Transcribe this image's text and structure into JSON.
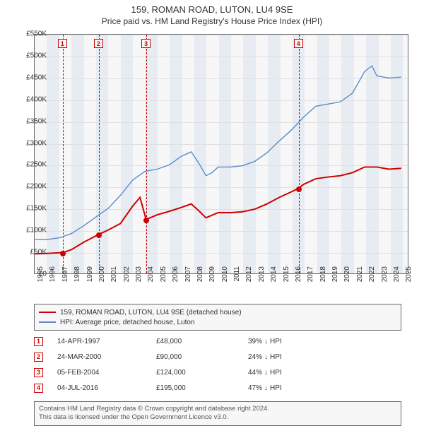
{
  "title": {
    "line1": "159, ROMAN ROAD, LUTON, LU4 9SE",
    "line2": "Price paid vs. HM Land Registry's House Price Index (HPI)",
    "fontsize_line1": 13,
    "fontsize_line2": 12,
    "color": "#333333"
  },
  "chart": {
    "type": "line",
    "background_color": "#f7f7f7",
    "border_color": "#666666",
    "grid_color": "#e0e0e0",
    "xlim": [
      1995,
      2025.5
    ],
    "ylim": [
      0,
      550000
    ],
    "ytick_step": 50000,
    "yticks": [
      "£0",
      "£50K",
      "£100K",
      "£150K",
      "£200K",
      "£250K",
      "£300K",
      "£350K",
      "£400K",
      "£450K",
      "£500K",
      "£550K"
    ],
    "xticks": [
      1995,
      1996,
      1997,
      1998,
      1999,
      2000,
      2001,
      2002,
      2003,
      2004,
      2005,
      2006,
      2007,
      2008,
      2009,
      2010,
      2011,
      2012,
      2013,
      2014,
      2015,
      2016,
      2017,
      2018,
      2019,
      2020,
      2021,
      2022,
      2023,
      2024,
      2025
    ],
    "band_color": "rgba(200,215,235,0.35)",
    "band_years": [
      1996,
      1998,
      2000,
      2002,
      2004,
      2006,
      2008,
      2010,
      2012,
      2014,
      2016,
      2018,
      2020,
      2022,
      2024
    ],
    "series": [
      {
        "name": "property",
        "label": "159, ROMAN ROAD, LUTON, LU4 9SE (detached house)",
        "color": "#cc0000",
        "line_width": 2,
        "points": [
          [
            1995.0,
            45000
          ],
          [
            1996.0,
            46000
          ],
          [
            1997.29,
            48000
          ],
          [
            1998.0,
            55000
          ],
          [
            1999.0,
            72000
          ],
          [
            2000.23,
            90000
          ],
          [
            2001.0,
            100000
          ],
          [
            2002.0,
            115000
          ],
          [
            2003.0,
            155000
          ],
          [
            2003.6,
            175000
          ],
          [
            2004.1,
            124000
          ],
          [
            2005.0,
            135000
          ],
          [
            2006.0,
            143000
          ],
          [
            2007.0,
            152000
          ],
          [
            2007.8,
            160000
          ],
          [
            2008.5,
            142000
          ],
          [
            2009.0,
            128000
          ],
          [
            2010.0,
            140000
          ],
          [
            2011.0,
            140000
          ],
          [
            2012.0,
            142000
          ],
          [
            2013.0,
            148000
          ],
          [
            2014.0,
            160000
          ],
          [
            2015.0,
            175000
          ],
          [
            2016.0,
            188000
          ],
          [
            2016.51,
            195000
          ],
          [
            2017.0,
            205000
          ],
          [
            2018.0,
            218000
          ],
          [
            2019.0,
            222000
          ],
          [
            2020.0,
            225000
          ],
          [
            2021.0,
            232000
          ],
          [
            2022.0,
            245000
          ],
          [
            2023.0,
            245000
          ],
          [
            2024.0,
            240000
          ],
          [
            2025.0,
            242000
          ]
        ]
      },
      {
        "name": "hpi",
        "label": "HPI: Average price, detached house, Luton",
        "color": "#5b8bc9",
        "line_width": 1.4,
        "points": [
          [
            1995.0,
            78000
          ],
          [
            1996.0,
            78000
          ],
          [
            1997.0,
            82000
          ],
          [
            1998.0,
            92000
          ],
          [
            1999.0,
            110000
          ],
          [
            2000.0,
            130000
          ],
          [
            2001.0,
            150000
          ],
          [
            2002.0,
            180000
          ],
          [
            2003.0,
            215000
          ],
          [
            2004.0,
            235000
          ],
          [
            2005.0,
            240000
          ],
          [
            2006.0,
            250000
          ],
          [
            2007.0,
            270000
          ],
          [
            2007.8,
            280000
          ],
          [
            2008.5,
            250000
          ],
          [
            2009.0,
            225000
          ],
          [
            2009.5,
            232000
          ],
          [
            2010.0,
            245000
          ],
          [
            2011.0,
            245000
          ],
          [
            2012.0,
            248000
          ],
          [
            2013.0,
            258000
          ],
          [
            2014.0,
            278000
          ],
          [
            2015.0,
            305000
          ],
          [
            2016.0,
            330000
          ],
          [
            2017.0,
            360000
          ],
          [
            2018.0,
            385000
          ],
          [
            2019.0,
            390000
          ],
          [
            2020.0,
            395000
          ],
          [
            2021.0,
            415000
          ],
          [
            2022.0,
            465000
          ],
          [
            2022.6,
            478000
          ],
          [
            2023.0,
            455000
          ],
          [
            2024.0,
            450000
          ],
          [
            2025.0,
            452000
          ]
        ]
      }
    ],
    "events": [
      {
        "n": "1",
        "year": 1997.29,
        "price": 48000,
        "color": "#cc0000"
      },
      {
        "n": "2",
        "year": 2000.23,
        "price": 90000,
        "color": "#cc0000"
      },
      {
        "n": "3",
        "year": 2004.1,
        "price": 124000,
        "color": "#cc0000"
      },
      {
        "n": "4",
        "year": 2016.51,
        "price": 195000,
        "color": "#cc0000"
      }
    ]
  },
  "legend": {
    "items": [
      {
        "color": "#cc0000",
        "label": "159, ROMAN ROAD, LUTON, LU4 9SE (detached house)"
      },
      {
        "color": "#5b8bc9",
        "label": "HPI: Average price, detached house, Luton"
      }
    ]
  },
  "sales": [
    {
      "n": "1",
      "date": "14-APR-1997",
      "price": "£48,000",
      "diff": "39%",
      "arrow": "↓",
      "suffix": "HPI",
      "color": "#cc0000"
    },
    {
      "n": "2",
      "date": "24-MAR-2000",
      "price": "£90,000",
      "diff": "24%",
      "arrow": "↓",
      "suffix": "HPI",
      "color": "#cc0000"
    },
    {
      "n": "3",
      "date": "05-FEB-2004",
      "price": "£124,000",
      "diff": "44%",
      "arrow": "↓",
      "suffix": "HPI",
      "color": "#cc0000"
    },
    {
      "n": "4",
      "date": "04-JUL-2016",
      "price": "£195,000",
      "diff": "47%",
      "arrow": "↓",
      "suffix": "HPI",
      "color": "#cc0000"
    }
  ],
  "attribution": {
    "line1": "Contains HM Land Registry data © Crown copyright and database right 2024.",
    "line2": "This data is licensed under the Open Government Licence v3.0."
  }
}
